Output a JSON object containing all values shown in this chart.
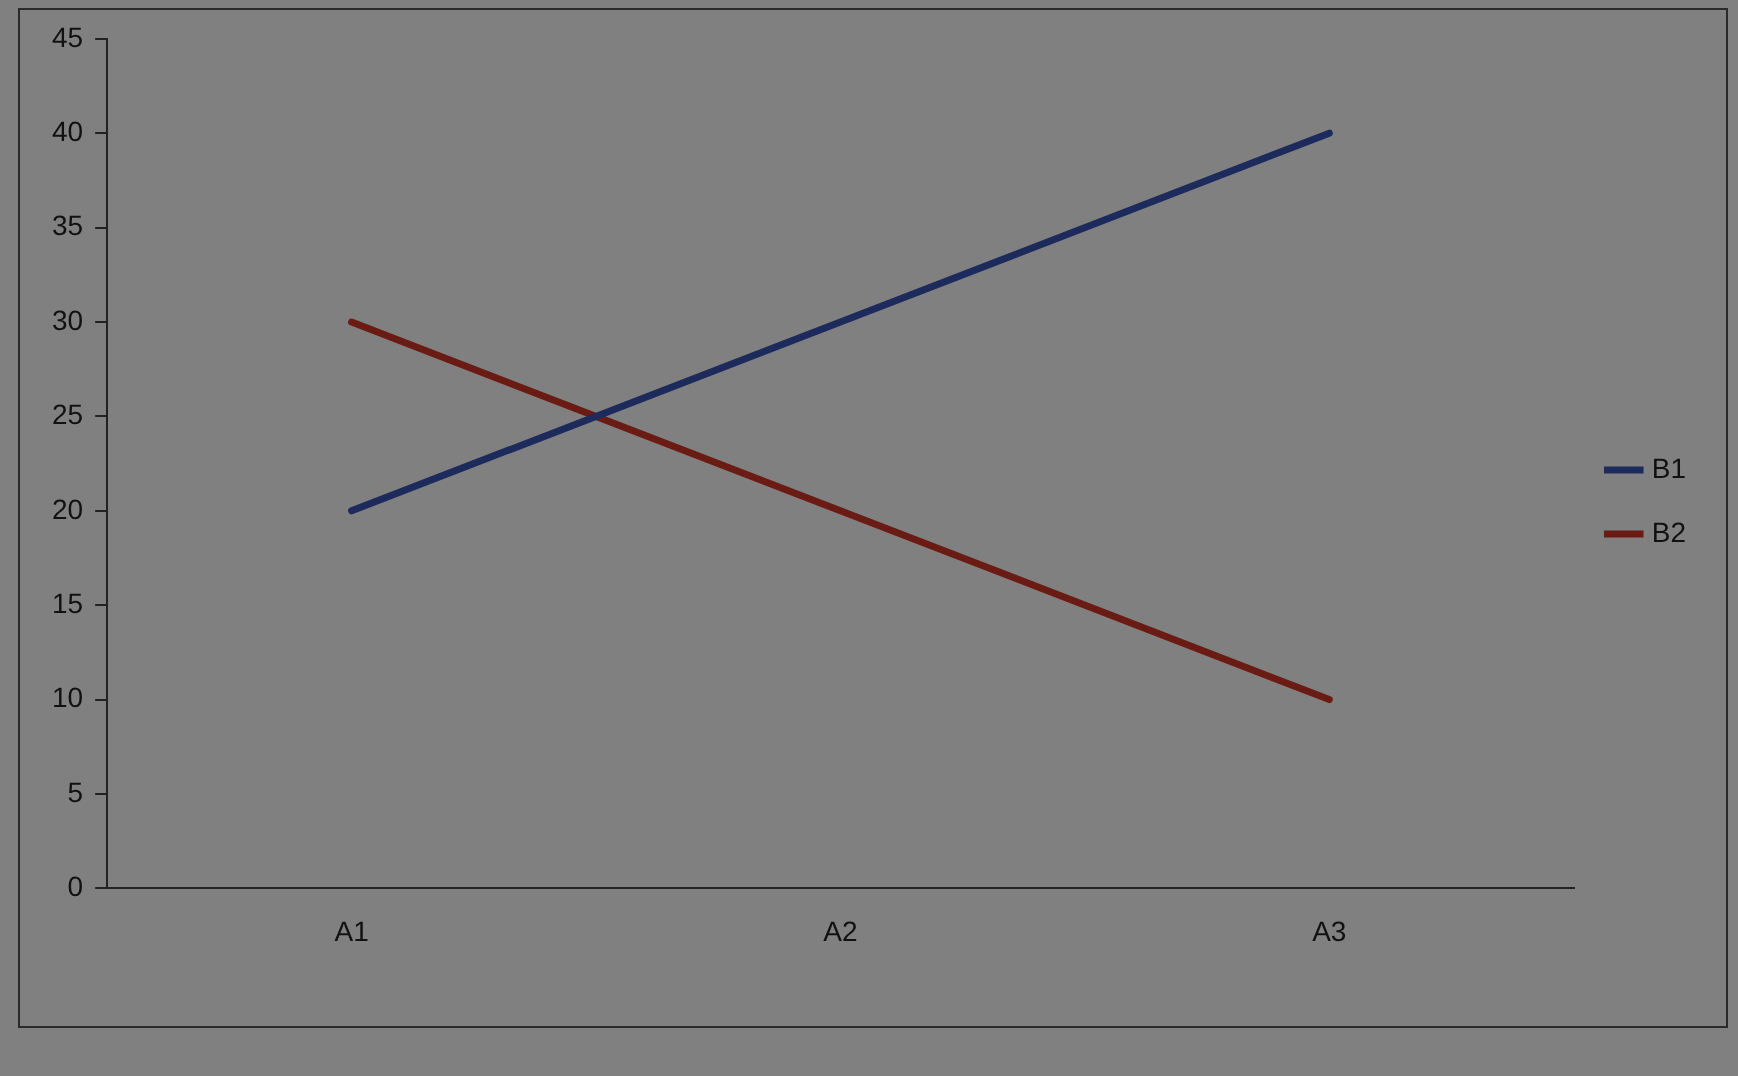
{
  "chart_data": {
    "type": "line",
    "categories": [
      "A1",
      "A2",
      "A3"
    ],
    "series": [
      {
        "name": "B1",
        "color": "#1c2a5c",
        "values": [
          20,
          30,
          40
        ]
      },
      {
        "name": "B2",
        "color": "#6a1c14",
        "values": [
          30,
          20,
          10
        ]
      }
    ],
    "ylim": [
      0,
      45
    ],
    "yticks": [
      0,
      5,
      10,
      15,
      20,
      25,
      30,
      35,
      40,
      45
    ],
    "grid": false,
    "legend": "right",
    "marker": "none",
    "line_style": "solid"
  }
}
